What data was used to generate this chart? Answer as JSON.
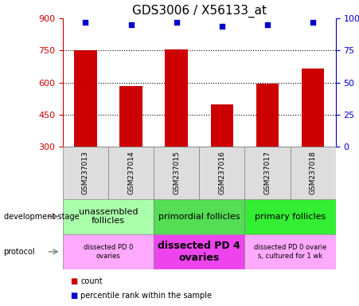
{
  "title": "GDS3006 / X56133_at",
  "samples": [
    "GSM237013",
    "GSM237014",
    "GSM237015",
    "GSM237016",
    "GSM237017",
    "GSM237018"
  ],
  "counts": [
    750,
    585,
    755,
    500,
    595,
    665
  ],
  "percentile_ranks": [
    97,
    95,
    97,
    94,
    95,
    97
  ],
  "y_min": 300,
  "y_max": 900,
  "y_ticks": [
    300,
    450,
    600,
    750,
    900
  ],
  "y_right_ticks": [
    0,
    25,
    50,
    75,
    100
  ],
  "y_right_tick_labels": [
    "0",
    "25",
    "50",
    "75",
    "100%"
  ],
  "bar_color": "#cc0000",
  "dot_color": "#0000cc",
  "development_stages": [
    {
      "label": "unassembled\nfollicles",
      "start": 0,
      "end": 2,
      "color": "#aaffaa"
    },
    {
      "label": "primordial follicles",
      "start": 2,
      "end": 4,
      "color": "#55dd55"
    },
    {
      "label": "primary follicles",
      "start": 4,
      "end": 6,
      "color": "#33ee33"
    }
  ],
  "protocols": [
    {
      "label": "dissected PD 0\novaries",
      "start": 0,
      "end": 2,
      "color": "#ffaaff"
    },
    {
      "label": "dissected PD 4\novaries",
      "start": 2,
      "end": 4,
      "color": "#ee44ee"
    },
    {
      "label": "dissected PD 0 ovarie\ns, cultured for 1 wk",
      "start": 4,
      "end": 6,
      "color": "#ffaaff"
    }
  ],
  "legend_count_color": "#cc0000",
  "legend_percentile_color": "#0000cc",
  "left_label_dev": "development stage",
  "left_label_proto": "protocol",
  "title_fontsize": 11,
  "sample_fontsize": 6.5,
  "dev_fontsize_large": 8,
  "dev_fontsize_small": 6,
  "proto_fontsize_large": 9,
  "proto_fontsize_small": 6,
  "legend_fontsize": 7
}
